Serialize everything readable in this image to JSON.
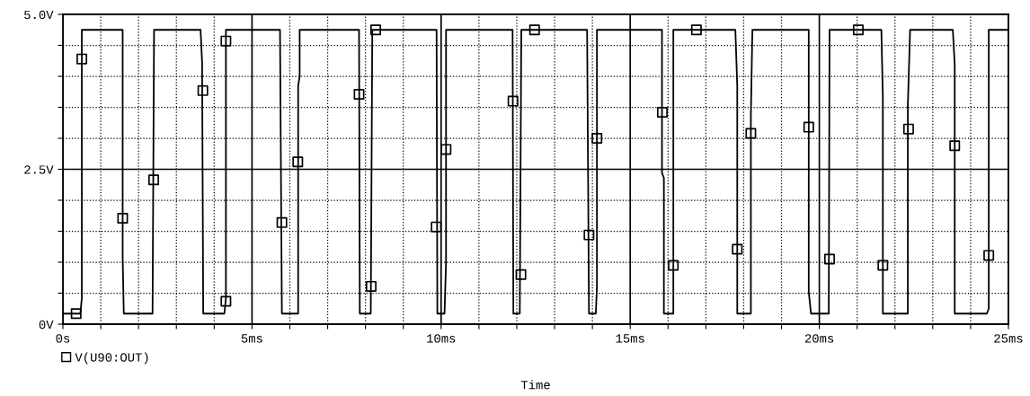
{
  "chart_data": {
    "type": "line",
    "xlabel": "Time",
    "legend": "bottom left",
    "grid": true,
    "xlim": [
      0,
      25
    ],
    "ylim": [
      0,
      5
    ],
    "xticks": [
      {
        "value": 0,
        "label": "0s"
      },
      {
        "value": 1,
        "label": null
      },
      {
        "value": 2,
        "label": null
      },
      {
        "value": 3,
        "label": null
      },
      {
        "value": 4,
        "label": null
      },
      {
        "value": 5,
        "label": "5ms"
      },
      {
        "value": 6,
        "label": null
      },
      {
        "value": 7,
        "label": null
      },
      {
        "value": 8,
        "label": null
      },
      {
        "value": 9,
        "label": null
      },
      {
        "value": 10,
        "label": "10ms"
      },
      {
        "value": 11,
        "label": null
      },
      {
        "value": 12,
        "label": null
      },
      {
        "value": 13,
        "label": null
      },
      {
        "value": 14,
        "label": null
      },
      {
        "value": 15,
        "label": "15ms"
      },
      {
        "value": 16,
        "label": null
      },
      {
        "value": 17,
        "label": null
      },
      {
        "value": 18,
        "label": null
      },
      {
        "value": 19,
        "label": null
      },
      {
        "value": 20,
        "label": "20ms"
      },
      {
        "value": 21,
        "label": null
      },
      {
        "value": 22,
        "label": null
      },
      {
        "value": 23,
        "label": null
      },
      {
        "value": 24,
        "label": null
      },
      {
        "value": 25,
        "label": "25ms"
      }
    ],
    "yticks": [
      {
        "value": 0,
        "label": "0V"
      },
      {
        "value": 0.5,
        "label": null
      },
      {
        "value": 1,
        "label": null
      },
      {
        "value": 1.5,
        "label": null
      },
      {
        "value": 2,
        "label": null
      },
      {
        "value": 2.5,
        "label": "2.5V"
      },
      {
        "value": 3,
        "label": null
      },
      {
        "value": 3.5,
        "label": null
      },
      {
        "value": 4,
        "label": null
      },
      {
        "value": 4.5,
        "label": null
      },
      {
        "value": 5,
        "label": "5.0V"
      }
    ],
    "series": [
      {
        "color": "#000000",
        "marker": "none",
        "line_style": "solid",
        "x": [
          0,
          0.46,
          0.5,
          0.5,
          1.58,
          1.58,
          1.61,
          2.37,
          2.41,
          3.64,
          3.68,
          3.71,
          4.27,
          4.31,
          4.31,
          5.74,
          5.79,
          6.22,
          6.22,
          6.26,
          6.26,
          7.83,
          7.85,
          8.14,
          8.18,
          9.88,
          9.9,
          10.09,
          10.13,
          10.13,
          11.89,
          11.91,
          12.08,
          12.12,
          13.86,
          13.91,
          14.09,
          14.12,
          14.12,
          15.84,
          15.84,
          15.89,
          15.89,
          16.14,
          16.14,
          17.78,
          17.83,
          17.83,
          18.19,
          18.19,
          18.23,
          19.72,
          19.72,
          19.78,
          20.25,
          20.27,
          21.64,
          21.68,
          21.68,
          22.34,
          22.34,
          22.4,
          23.53,
          23.58,
          23.58,
          24.43,
          24.48,
          24.48,
          25
        ],
        "values": [
          0.17,
          0.17,
          0.42,
          4.75,
          4.75,
          1.08,
          0.17,
          0.17,
          4.75,
          4.75,
          4.23,
          0.17,
          0.17,
          0.42,
          4.75,
          4.75,
          0.17,
          0.17,
          3.85,
          4.0,
          4.75,
          4.75,
          0.17,
          0.17,
          4.75,
          4.75,
          0.17,
          0.17,
          1.0,
          4.75,
          4.75,
          0.17,
          0.17,
          4.75,
          4.75,
          0.17,
          0.17,
          0.6,
          4.75,
          4.75,
          2.44,
          2.36,
          0.17,
          0.17,
          4.75,
          4.75,
          3.85,
          0.17,
          0.17,
          3.37,
          4.75,
          4.75,
          0.52,
          0.17,
          0.17,
          4.75,
          4.75,
          3.66,
          0.17,
          0.17,
          3.52,
          4.75,
          4.75,
          4.19,
          0.17,
          0.17,
          0.25,
          4.75,
          4.75
        ]
      },
      {
        "type": "scatter",
        "name": "V(U90:OUT)",
        "color": "#000000",
        "marker": "square",
        "x": [
          0.35,
          0.5,
          1.58,
          2.4,
          3.7,
          4.31,
          4.31,
          5.79,
          6.21,
          7.83,
          8.15,
          8.27,
          9.87,
          10.13,
          11.9,
          12.11,
          12.47,
          13.91,
          14.12,
          15.85,
          16.14,
          16.75,
          17.83,
          18.19,
          19.72,
          20.27,
          21.03,
          21.68,
          22.36,
          23.58,
          24.48
        ],
        "values": [
          0.17,
          4.28,
          1.71,
          2.33,
          3.77,
          4.57,
          0.37,
          1.64,
          2.62,
          3.71,
          0.61,
          4.75,
          1.57,
          2.82,
          3.6,
          0.8,
          4.75,
          1.44,
          3.0,
          3.42,
          0.95,
          4.75,
          1.21,
          3.08,
          3.18,
          1.05,
          4.75,
          0.95,
          3.15,
          2.88,
          1.11
        ]
      }
    ]
  }
}
